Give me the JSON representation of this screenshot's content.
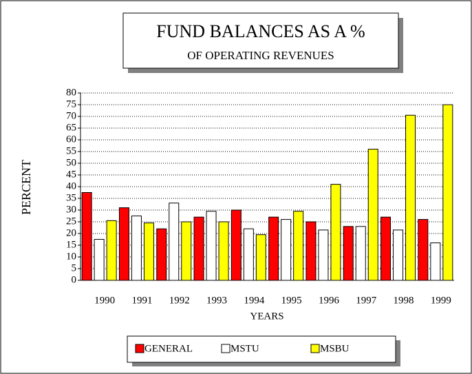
{
  "chart_data": {
    "type": "bar",
    "title": "FUND BALANCES AS A %",
    "subtitle": "OF OPERATING REVENUES",
    "x_label": "YEARS",
    "y_label": "PERCENT",
    "categories": [
      "1990",
      "1991",
      "1992",
      "1993",
      "1994",
      "1995",
      "1996",
      "1997",
      "1998",
      "1999"
    ],
    "series": [
      {
        "name": "GENERAL",
        "color": "#ff0000",
        "values": [
          37.5,
          31,
          22,
          27,
          30,
          27,
          25,
          23,
          27,
          26
        ]
      },
      {
        "name": "MSTU",
        "color": "#ffffff",
        "values": [
          17.5,
          27.5,
          33,
          29.5,
          22,
          26,
          21.5,
          23,
          21.5,
          16
        ]
      },
      {
        "name": "MSBU",
        "color": "#ffff00",
        "values": [
          25.5,
          24.5,
          25,
          25,
          19.5,
          29.5,
          41,
          56,
          70.5,
          75
        ]
      }
    ],
    "ylim": [
      0,
      80
    ],
    "yticks": [
      0,
      5,
      10,
      15,
      20,
      25,
      30,
      35,
      40,
      45,
      50,
      55,
      60,
      65,
      70,
      75,
      80
    ],
    "grid": true,
    "legend": "bottom"
  }
}
